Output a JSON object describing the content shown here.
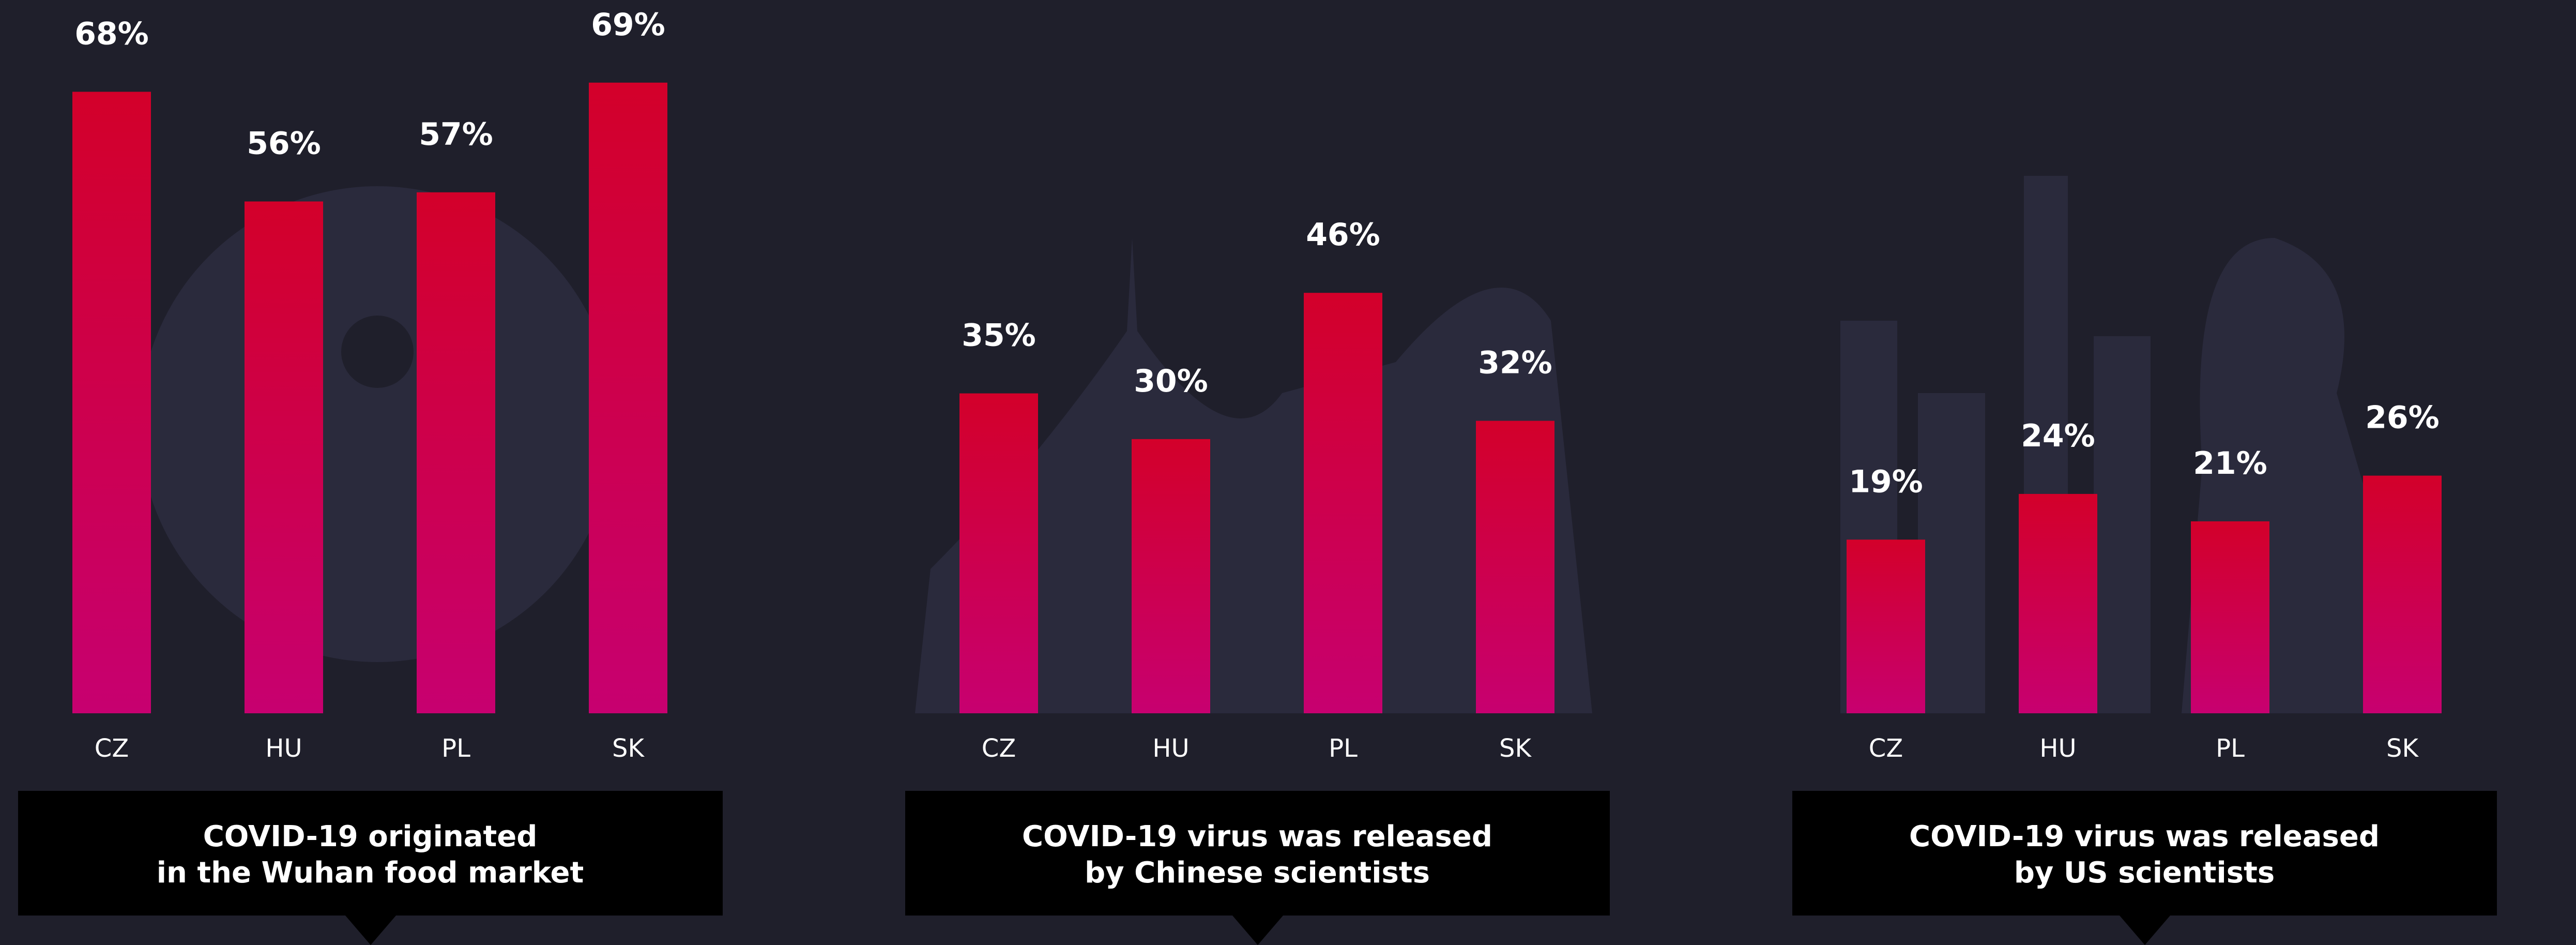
{
  "chart_data": [
    {
      "type": "bar",
      "title": [
        "COVID-19 originated",
        "in the Wuhan food market"
      ],
      "categories": [
        "CZ",
        "HU",
        "PL",
        "SK"
      ],
      "values": [
        68,
        56,
        57,
        69
      ],
      "value_labels": [
        "68%",
        "56%",
        "57%",
        "69%"
      ],
      "gradient": [
        "#d3002a",
        "#c70070"
      ]
    },
    {
      "type": "bar",
      "title": [
        "COVID-19 virus was released",
        "by Chinese scientists"
      ],
      "categories": [
        "CZ",
        "HU",
        "PL",
        "SK"
      ],
      "values": [
        35,
        30,
        46,
        32
      ],
      "value_labels": [
        "35%",
        "30%",
        "46%",
        "32%"
      ],
      "gradient": [
        "#d3002a",
        "#c70070"
      ]
    },
    {
      "type": "bar",
      "title": [
        "COVID-19 virus was released",
        "by US scientists"
      ],
      "categories": [
        "CZ",
        "HU",
        "PL",
        "SK"
      ],
      "values": [
        19,
        24,
        21,
        26
      ],
      "value_labels": [
        "19%",
        "24%",
        "21%",
        "26%"
      ],
      "gradient": [
        "#d3002a",
        "#c70070"
      ]
    }
  ]
}
